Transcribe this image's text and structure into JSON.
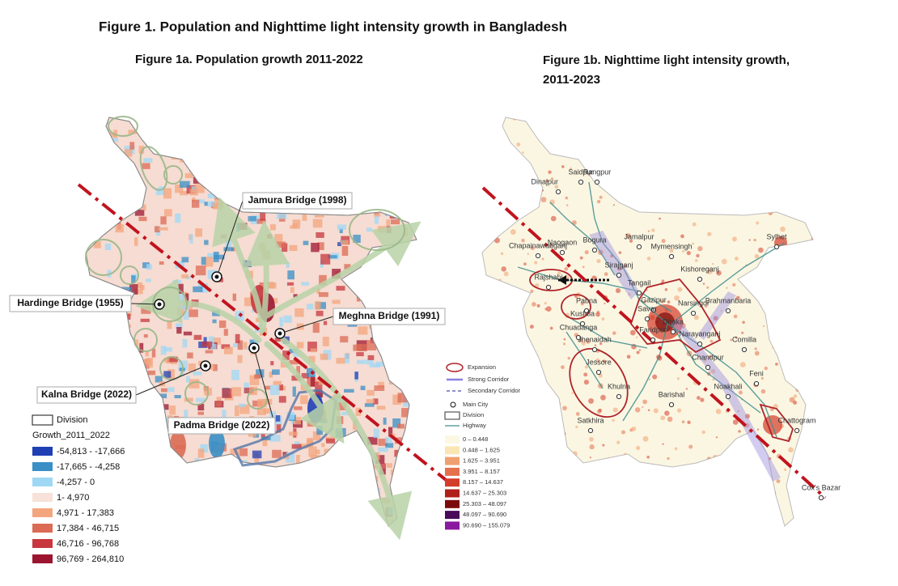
{
  "title": "Figure 1. Population and Nighttime light intensity growth in Bangladesh",
  "panel_a": {
    "title": "Figure 1a. Population growth 2011-2022",
    "bridges": [
      "Jamura Bridge (1998)",
      "Hardinge Bridge (1955)",
      "Meghna Bridge (1991)",
      "Kalna Bridge (2022)",
      "Padma Bridge (2022)"
    ],
    "legend": {
      "division": "Division",
      "title": "Growth_2011_2022",
      "items": [
        {
          "label": "-54,813 - -17,666",
          "color": "#1f3fb5"
        },
        {
          "label": "-17,665 - -4,258",
          "color": "#3a8fc6"
        },
        {
          "label": "-4,257 - 0",
          "color": "#9fd8f5"
        },
        {
          "label": "1- 4,970",
          "color": "#f7e1d8"
        },
        {
          "label": "4,971 - 17,383",
          "color": "#f3a57e"
        },
        {
          "label": "17,384 - 46,715",
          "color": "#dc6b55"
        },
        {
          "label": "46,716 - 96,768",
          "color": "#c7373d"
        },
        {
          "label": "96,769 - 264,810",
          "color": "#9c1530"
        }
      ]
    }
  },
  "panel_b": {
    "title": [
      "Figure 1b. Nighttime light intensity growth,",
      "2011-2023"
    ],
    "cities": [
      "Dinajpur",
      "Saidpur",
      "Rangpur",
      "Naogaon",
      "Bogura",
      "Jamalpur",
      "Sylhet",
      "Chapainawabganj",
      "Mymensingh",
      "Sirajganj",
      "Kishoreganj",
      "Rajshahi",
      "Tangail",
      "Pabna",
      "Gazipur",
      "Narsingdi",
      "Brahmanbaria",
      "Kushtia",
      "Savar",
      "Dhaka",
      "Narayanganj",
      "Chuadanga",
      "Faridpur",
      "Comilla",
      "Jhenaidah",
      "Chandpur",
      "Jessore",
      "Feni",
      "Khulna",
      "Noakhali",
      "Barishal",
      "Satkhira",
      "Chattogram",
      "Cox's Bazar"
    ],
    "legend": {
      "expansion": "Expansion",
      "strong": "Strong Corridor",
      "secondary": "Secondary Corridor",
      "city": "Main City",
      "division": "Division",
      "highway": "Highway",
      "items": [
        {
          "label": "0 – 0.448",
          "color": "#fbf7e3"
        },
        {
          "label": "0.448 – 1.625",
          "color": "#fae6b4"
        },
        {
          "label": "1.625 – 3.951",
          "color": "#f0a070"
        },
        {
          "label": "3.951 – 8.157",
          "color": "#e4704c"
        },
        {
          "label": "8.157 – 14.637",
          "color": "#d43c2a"
        },
        {
          "label": "14.637 – 25.303",
          "color": "#b0201a"
        },
        {
          "label": "25.303 – 48.097",
          "color": "#7a0a0a"
        },
        {
          "label": "48.097 – 90.690",
          "color": "#4a0a5a"
        },
        {
          "label": "90.690 – 155.079",
          "color": "#8a1aa0"
        }
      ]
    }
  }
}
